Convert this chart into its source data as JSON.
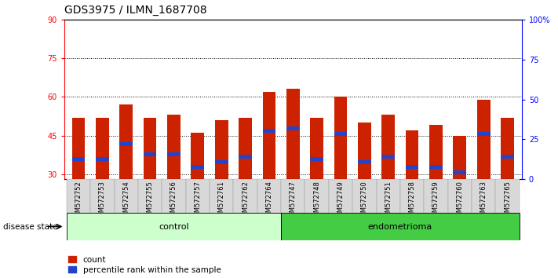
{
  "title": "GDS3975 / ILMN_1687708",
  "samples": [
    "GSM572752",
    "GSM572753",
    "GSM572754",
    "GSM572755",
    "GSM572756",
    "GSM572757",
    "GSM572761",
    "GSM572762",
    "GSM572764",
    "GSM572747",
    "GSM572748",
    "GSM572749",
    "GSM572750",
    "GSM572751",
    "GSM572758",
    "GSM572759",
    "GSM572760",
    "GSM572763",
    "GSM572765"
  ],
  "count_values": [
    52,
    52,
    57,
    52,
    53,
    46,
    51,
    52,
    62,
    63,
    52,
    60,
    50,
    53,
    47,
    49,
    45,
    59,
    52
  ],
  "percentile_values": [
    35,
    35,
    41,
    37,
    37,
    32,
    34,
    36,
    46,
    47,
    35,
    45,
    34,
    36,
    32,
    32,
    30,
    45,
    36
  ],
  "percentile_bar_height": [
    1.5,
    1.5,
    1.5,
    1.5,
    1.5,
    1.5,
    1.5,
    1.5,
    1.5,
    1.5,
    1.5,
    1.5,
    1.5,
    1.5,
    1.5,
    1.5,
    1.5,
    1.5,
    1.5
  ],
  "group_labels": [
    "control",
    "endometrioma"
  ],
  "n_control": 9,
  "n_total": 19,
  "ylim_left": [
    28,
    90
  ],
  "ylim_right": [
    0,
    100
  ],
  "yticks_left": [
    30,
    45,
    60,
    75,
    90
  ],
  "yticks_right": [
    0,
    25,
    50,
    75,
    100
  ],
  "bar_color": "#cc2200",
  "percentile_color": "#2244cc",
  "control_color": "#ccffcc",
  "endometrioma_color": "#44cc44",
  "title_fontsize": 10,
  "tick_fontsize": 7,
  "label_fontsize": 8
}
